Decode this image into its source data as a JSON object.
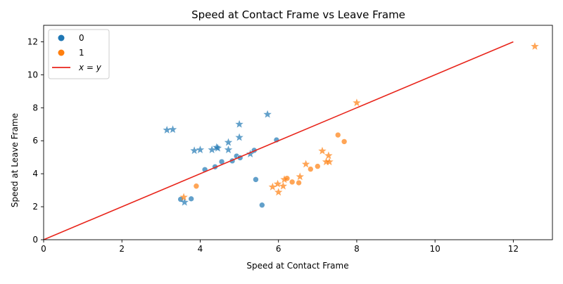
{
  "chart_data": {
    "type": "scatter",
    "title": "Speed at Contact Frame vs Leave Frame",
    "xlabel": "Speed at Contact Frame",
    "ylabel": "Speed at Leave Frame",
    "xlim": [
      0,
      13
    ],
    "ylim": [
      0,
      13
    ],
    "xticks": [
      "0",
      "2",
      "4",
      "6",
      "8",
      "10",
      "12"
    ],
    "yticks": [
      "0",
      "2",
      "4",
      "6",
      "8",
      "10",
      "12"
    ],
    "grid": false,
    "legend_position": "top-left",
    "legend": {
      "entries": [
        {
          "label": "0",
          "kind": "dot",
          "color": "#1f77b4"
        },
        {
          "label": "1",
          "kind": "dot",
          "color": "#ff7f0e"
        },
        {
          "label": "x = y",
          "kind": "line",
          "color": "#e8251b"
        }
      ]
    },
    "reference_line": {
      "label": "x = y",
      "x": [
        0,
        12
      ],
      "y": [
        0,
        12
      ],
      "color": "#e8251b"
    },
    "series": [
      {
        "name": "0",
        "color": "#1f77b4",
        "circles": [
          [
            3.5,
            2.45
          ],
          [
            3.77,
            2.48
          ],
          [
            4.12,
            4.25
          ],
          [
            4.38,
            4.42
          ],
          [
            4.55,
            4.73
          ],
          [
            4.82,
            4.78
          ],
          [
            4.93,
            5.07
          ],
          [
            5.02,
            4.97
          ],
          [
            5.38,
            5.42
          ],
          [
            5.42,
            3.65
          ],
          [
            5.58,
            2.1
          ],
          [
            5.95,
            6.05
          ]
        ],
        "stars": [
          [
            3.15,
            6.65
          ],
          [
            3.3,
            6.68
          ],
          [
            3.6,
            2.27
          ],
          [
            3.85,
            5.4
          ],
          [
            4.0,
            5.45
          ],
          [
            4.3,
            5.45
          ],
          [
            4.42,
            5.6
          ],
          [
            4.45,
            5.55
          ],
          [
            4.72,
            5.9
          ],
          [
            4.72,
            5.45
          ],
          [
            5.0,
            6.2
          ],
          [
            5.0,
            7.0
          ],
          [
            5.28,
            5.2
          ],
          [
            5.72,
            7.6
          ]
        ]
      },
      {
        "name": "1",
        "color": "#ff7f0e",
        "circles": [
          [
            3.9,
            3.25
          ],
          [
            6.22,
            3.72
          ],
          [
            6.35,
            3.5
          ],
          [
            6.52,
            3.45
          ],
          [
            6.82,
            4.28
          ],
          [
            7.0,
            4.45
          ],
          [
            7.52,
            6.35
          ],
          [
            7.68,
            5.95
          ]
        ],
        "stars": [
          [
            3.58,
            2.58
          ],
          [
            5.85,
            3.2
          ],
          [
            5.98,
            3.38
          ],
          [
            6.0,
            2.88
          ],
          [
            6.12,
            3.25
          ],
          [
            6.15,
            3.65
          ],
          [
            6.55,
            3.82
          ],
          [
            6.7,
            4.58
          ],
          [
            7.12,
            5.38
          ],
          [
            7.22,
            4.72
          ],
          [
            7.28,
            5.1
          ],
          [
            7.3,
            4.72
          ],
          [
            8.0,
            8.3
          ],
          [
            12.55,
            11.72
          ]
        ]
      }
    ]
  }
}
